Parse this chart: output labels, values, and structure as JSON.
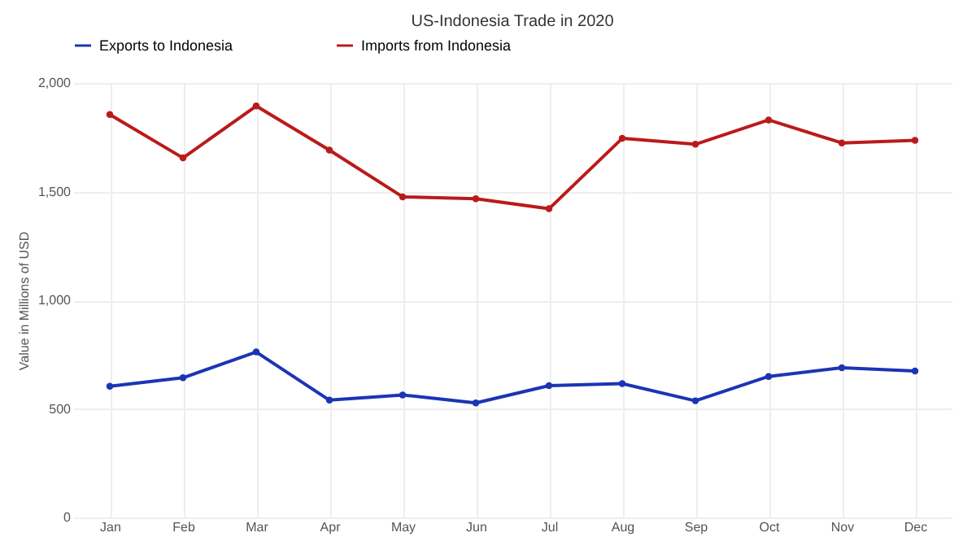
{
  "chart_data": {
    "type": "line",
    "title": "US-Indonesia Trade in 2020",
    "ylabel": "Value in Millions of USD",
    "categories": [
      "Jan",
      "Feb",
      "Mar",
      "Apr",
      "May",
      "Jun",
      "Jul",
      "Aug",
      "Sep",
      "Oct",
      "Nov",
      "Dec"
    ],
    "series": [
      {
        "name": "Exports to Indonesia",
        "color": "#1c34b4",
        "values": [
          604,
          643,
          762,
          540,
          564,
          527,
          607,
          616,
          537,
          649,
          689,
          674
        ]
      },
      {
        "name": "Imports from Indonesia",
        "color": "#bb1a1a",
        "values": [
          1855,
          1655,
          1894,
          1691,
          1476,
          1467,
          1421,
          1745,
          1718,
          1830,
          1724,
          1736
        ]
      }
    ],
    "ylim": [
      0,
      2000
    ],
    "yticks": [
      {
        "value": 0,
        "label": "0"
      },
      {
        "value": 500,
        "label": "500"
      },
      {
        "value": 1000,
        "label": "1,000"
      },
      {
        "value": 1500,
        "label": "1,500"
      },
      {
        "value": 2000,
        "label": "2,000"
      }
    ],
    "grid": true,
    "legend": "top",
    "marker": "circle",
    "line_style": "solid"
  }
}
